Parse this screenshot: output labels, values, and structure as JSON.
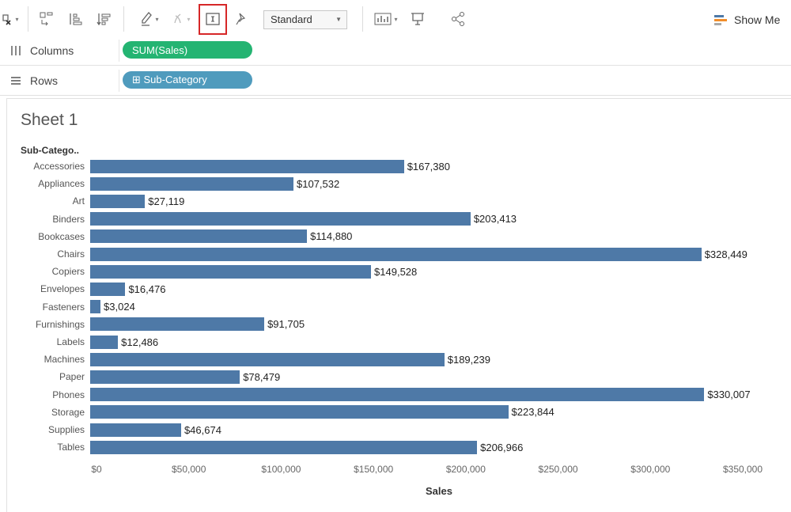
{
  "toolbar": {
    "mark_type_select": "Standard",
    "show_me_label": "Show Me"
  },
  "shelves": {
    "columns": {
      "label": "Columns",
      "pill": "SUM(Sales)"
    },
    "rows": {
      "label": "Rows",
      "pill": "⊞ Sub-Category"
    }
  },
  "sheet": {
    "title": "Sheet 1",
    "row_header": "Sub-Catego.."
  },
  "colors": {
    "bar": "#4e79a7",
    "columns_pill": "#24b472",
    "rows_pill": "#4f9bbd",
    "highlight": "#d62728"
  },
  "chart_data": {
    "type": "bar",
    "orientation": "horizontal",
    "categories": [
      "Accessories",
      "Appliances",
      "Art",
      "Binders",
      "Bookcases",
      "Chairs",
      "Copiers",
      "Envelopes",
      "Fasteners",
      "Furnishings",
      "Labels",
      "Machines",
      "Paper",
      "Phones",
      "Storage",
      "Supplies",
      "Tables"
    ],
    "values": [
      167380,
      107532,
      27119,
      203413,
      114880,
      328449,
      149528,
      16476,
      3024,
      91705,
      12486,
      189239,
      78479,
      330007,
      223844,
      46674,
      206966
    ],
    "value_labels": [
      "$167,380",
      "$107,532",
      "$27,119",
      "$203,413",
      "$114,880",
      "$328,449",
      "$149,528",
      "$16,476",
      "$3,024",
      "$91,705",
      "$12,486",
      "$189,239",
      "$78,479",
      "$330,007",
      "$223,844",
      "$46,674",
      "$206,966"
    ],
    "xlabel": "Sales",
    "ylabel": "Sub-Catego..",
    "xlim": [
      0,
      350000
    ],
    "x_ticks": [
      0,
      50000,
      100000,
      150000,
      200000,
      250000,
      300000,
      350000
    ],
    "x_tick_labels": [
      "$0",
      "$50,000",
      "$100,000",
      "$150,000",
      "$200,000",
      "$250,000",
      "$300,000",
      "$350,000"
    ],
    "grid": false
  }
}
